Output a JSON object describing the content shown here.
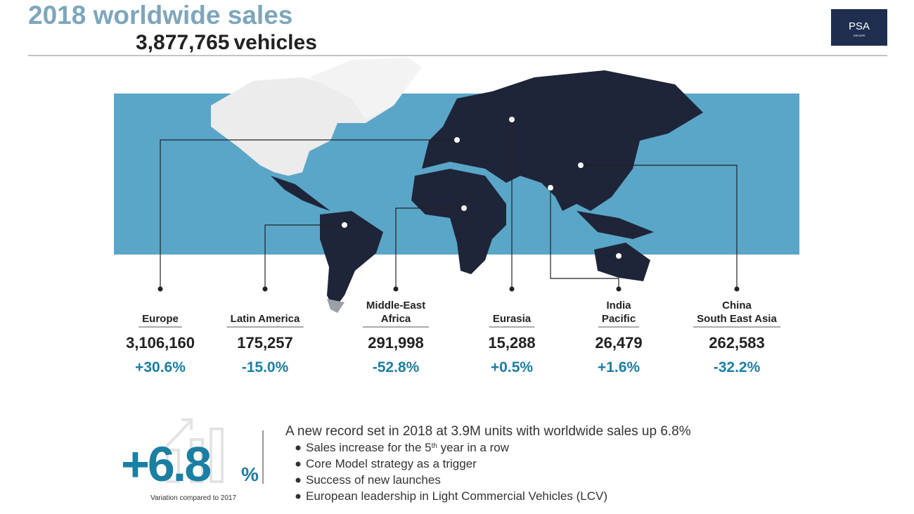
{
  "header": {
    "title": "2018 worldwide sales",
    "total": "3,877,765",
    "unit": "vehicles"
  },
  "logo": {
    "name": "PSA",
    "sub": "GROUPE"
  },
  "regions": [
    {
      "name": [
        "Europe"
      ],
      "sales": "3,106,160",
      "change": "+30.6%"
    },
    {
      "name": [
        "Latin America"
      ],
      "sales": "175,257",
      "change": "-15.0%"
    },
    {
      "name": [
        "Middle-East",
        "Africa"
      ],
      "sales": "291,998",
      "change": "-52.8%"
    },
    {
      "name": [
        "Eurasia"
      ],
      "sales": "15,288",
      "change": "+0.5%"
    },
    {
      "name": [
        "India",
        "Pacific"
      ],
      "sales": "26,479",
      "change": "+1.6%"
    },
    {
      "name": [
        "China",
        "South East Asia"
      ],
      "sales": "262,583",
      "change": "-32.2%"
    }
  ],
  "highlight": {
    "value": "+6.8",
    "unit": "%",
    "caption": "Variation compared to 2017"
  },
  "summary": {
    "headline": "A new record set in 2018 at 3.9M units with worldwide sales up 6.8%",
    "bullets": [
      [
        "Sales increase for the 5",
        "th",
        " year in a row"
      ],
      [
        "Core Model strategy as a trigger"
      ],
      [
        "Success of new launches"
      ],
      [
        "European leadership in Light Commercial Vehicles (LCV)"
      ]
    ]
  }
}
